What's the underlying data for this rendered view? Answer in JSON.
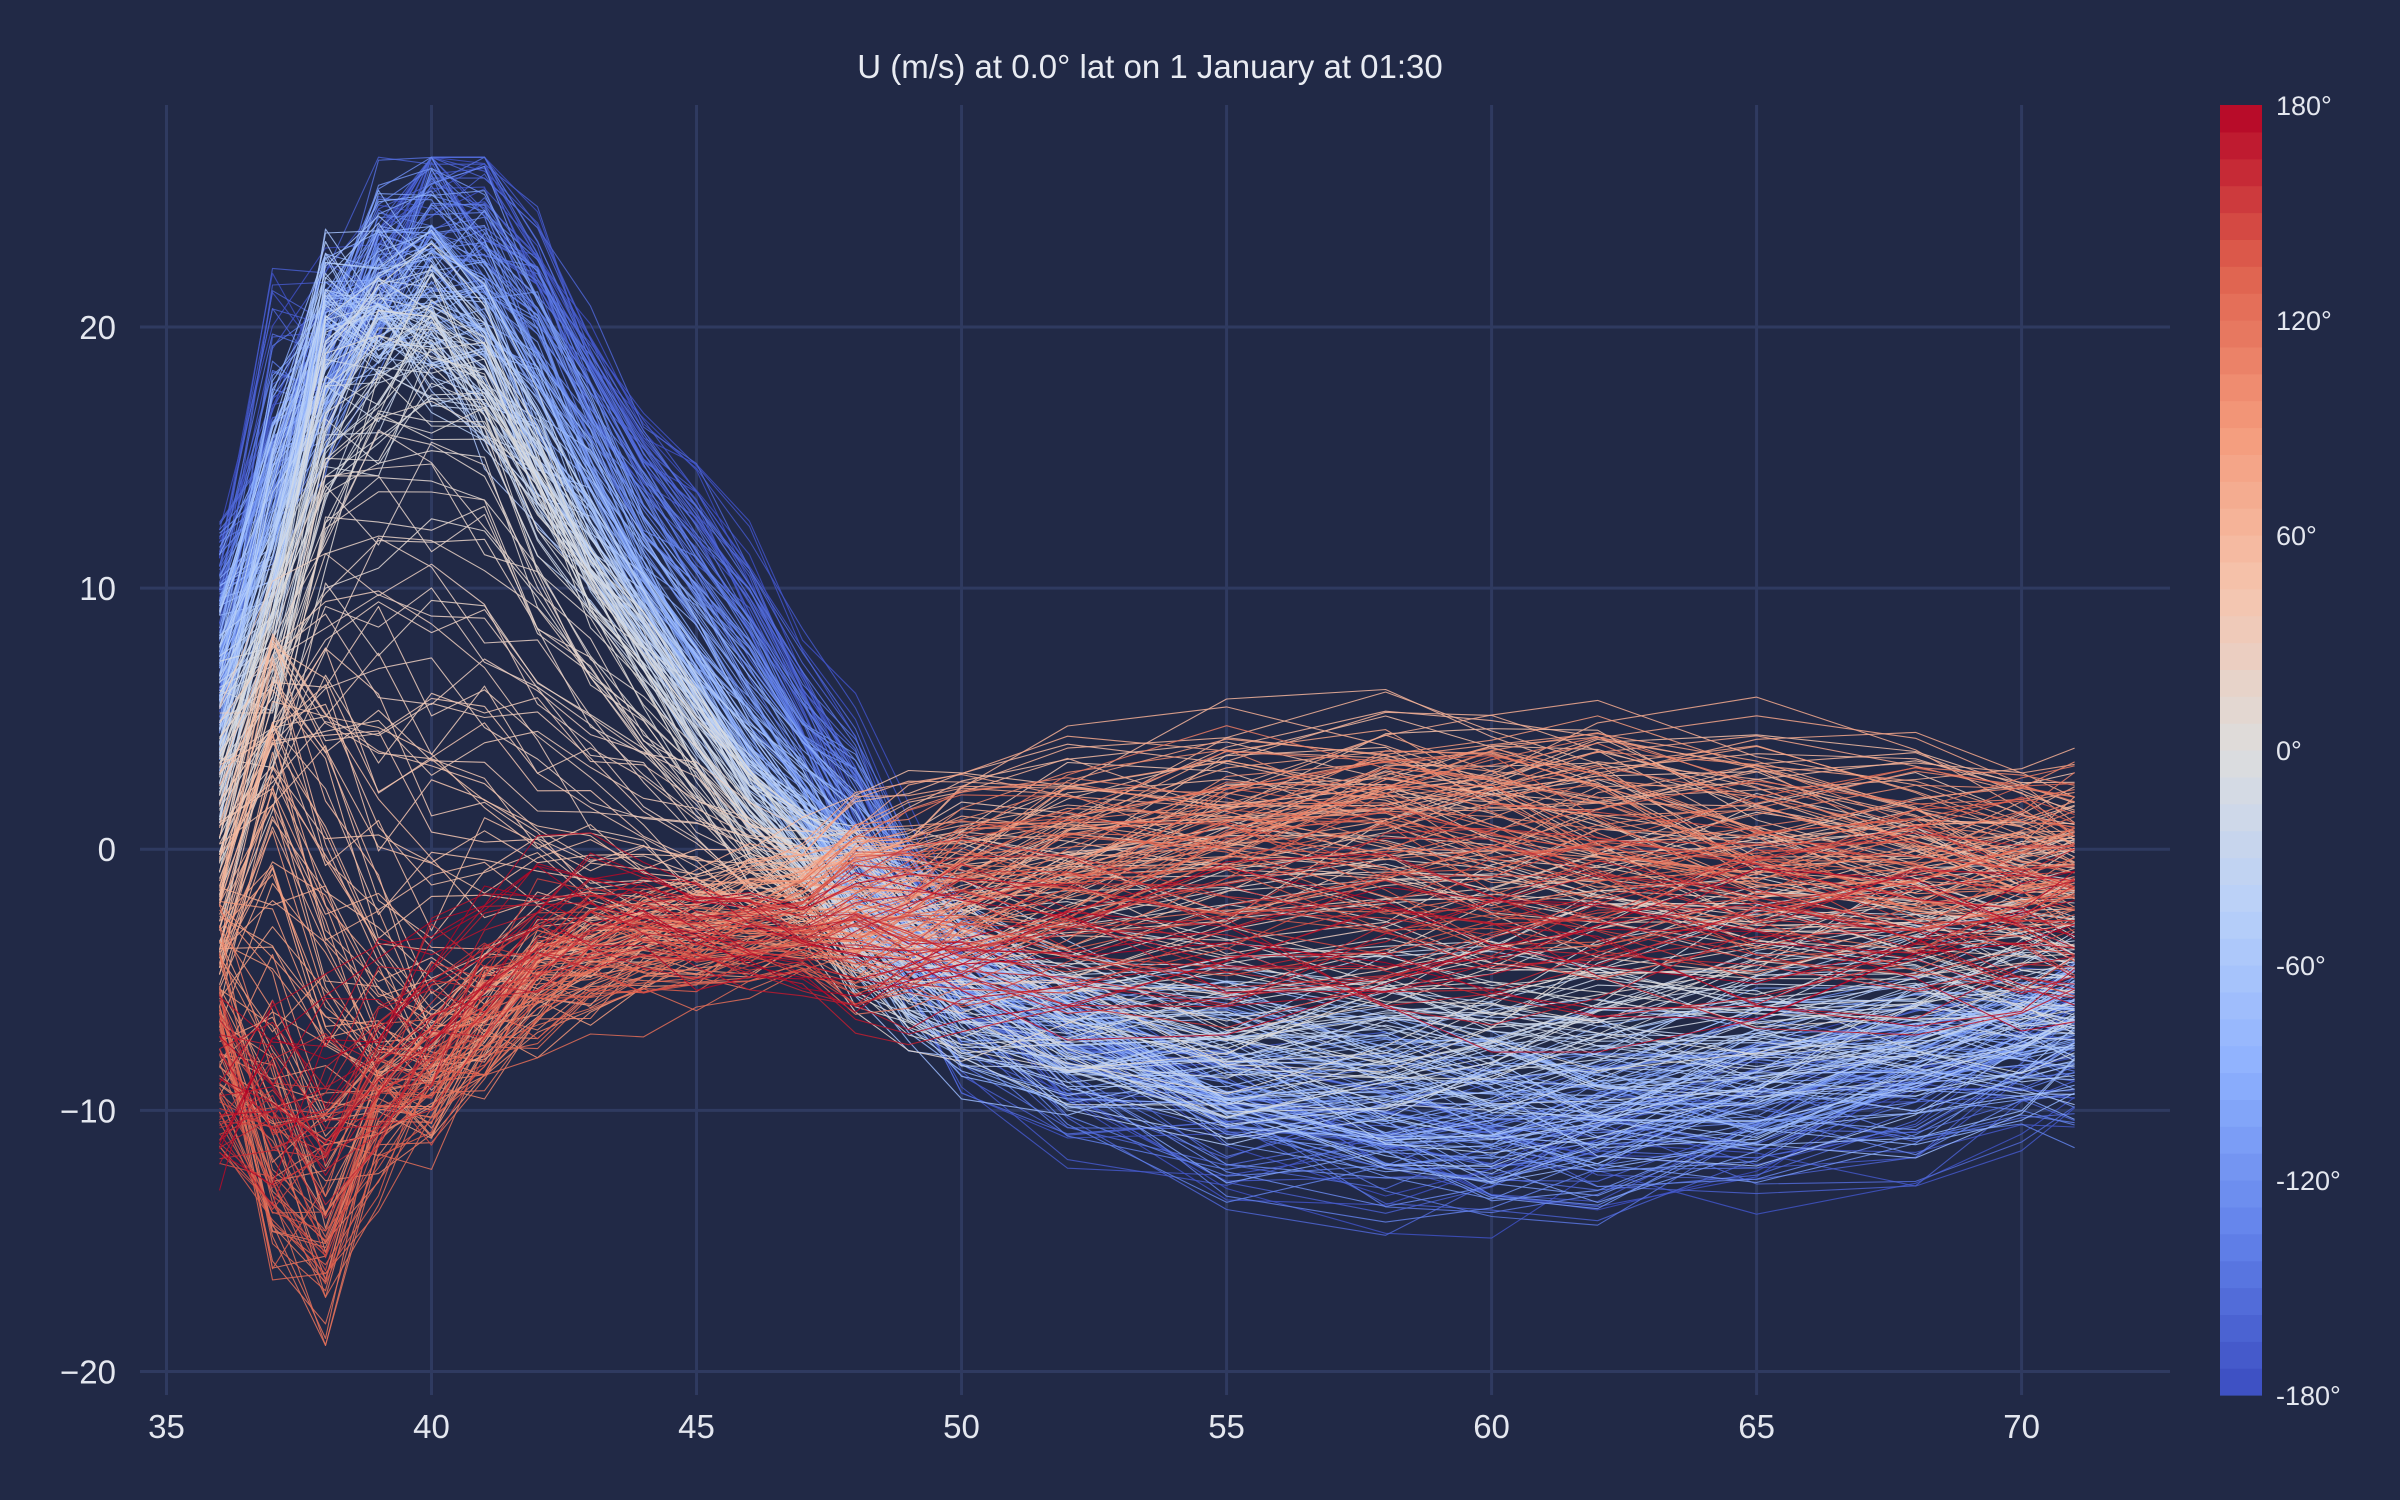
{
  "chart_data": {
    "type": "line",
    "title": "U (m/s) at 0.0° lat on 1 January at 01:30",
    "xlabel": "",
    "ylabel": "",
    "xlim": [
      34.5,
      72.8
    ],
    "ylim": [
      -20.9,
      28.5
    ],
    "grid": true,
    "x_ticks": [
      35,
      40,
      45,
      50,
      55,
      60,
      65,
      70
    ],
    "x_tick_labels": [
      "35",
      "40",
      "45",
      "50",
      "55",
      "60",
      "65",
      "70"
    ],
    "y_ticks": [
      -20,
      -10,
      0,
      10,
      20
    ],
    "y_tick_labels": [
      "−20",
      "−10",
      "0",
      "10",
      "20"
    ],
    "x_range": [
      36,
      71
    ],
    "series_count": 360,
    "series_parameter": "longitude",
    "colormap": "coolwarm",
    "colorbar": {
      "range": [
        -180,
        180
      ],
      "ticks": [
        -180,
        -120,
        -60,
        0,
        60,
        120,
        180
      ],
      "tick_labels": [
        "-180°",
        "-120°",
        "-60°",
        "0°",
        "60°",
        "120°",
        "180°"
      ],
      "levels": 48
    },
    "representative_series": [
      {
        "name": "-180°",
        "x": [
          36,
          37,
          38,
          39,
          40,
          41,
          42,
          43,
          44,
          45,
          46,
          47,
          48,
          49,
          50,
          52,
          55,
          58,
          60,
          62,
          65,
          68,
          70,
          71
        ],
        "y": [
          10,
          19,
          20,
          23,
          26,
          25.5,
          23,
          19,
          16,
          14,
          11,
          7,
          3,
          -2,
          -6,
          -9,
          -11,
          -12,
          -12.3,
          -12,
          -11,
          -9.5,
          -8,
          -7.5
        ]
      },
      {
        "name": "-120°",
        "x": [
          36,
          37,
          38,
          39,
          40,
          41,
          42,
          43,
          44,
          45,
          46,
          47,
          48,
          49,
          50,
          52,
          55,
          58,
          60,
          62,
          65,
          68,
          70,
          71
        ],
        "y": [
          8,
          14,
          18,
          22,
          24,
          23,
          20,
          16,
          12,
          9,
          6,
          3,
          0,
          -3,
          -5,
          -7,
          -9,
          -10,
          -10.5,
          -10.3,
          -9.5,
          -8.5,
          -7.5,
          -7
        ]
      },
      {
        "name": "-60°",
        "x": [
          36,
          37,
          38,
          39,
          40,
          41,
          42,
          43,
          44,
          45,
          46,
          47,
          48,
          49,
          50,
          52,
          55,
          58,
          60,
          62,
          65,
          68,
          70,
          71
        ],
        "y": [
          6,
          13,
          21,
          21,
          20,
          18,
          15,
          12,
          9,
          6,
          3,
          1,
          -2,
          -4,
          -5.5,
          -7,
          -8,
          -8.5,
          -8.8,
          -9,
          -8.5,
          -7.5,
          -7,
          -6.5
        ]
      },
      {
        "name": "0°",
        "x": [
          36,
          37,
          38,
          39,
          40,
          41,
          42,
          43,
          44,
          45,
          46,
          47,
          48,
          49,
          50,
          52,
          55,
          58,
          60,
          62,
          65,
          68,
          70,
          71
        ],
        "y": [
          3,
          7,
          15,
          18,
          20,
          18,
          14,
          10,
          7,
          4,
          1,
          -1,
          -3,
          -4.5,
          -5.5,
          -6.5,
          -7,
          -6.5,
          -6,
          -5.5,
          -5,
          -4.5,
          -4.5,
          -4.5
        ]
      },
      {
        "name": "60°",
        "x": [
          36,
          37,
          38,
          39,
          40,
          41,
          42,
          43,
          44,
          45,
          46,
          47,
          48,
          49,
          50,
          52,
          55,
          58,
          60,
          62,
          65,
          68,
          70,
          71
        ],
        "y": [
          -2,
          5,
          0,
          -4,
          -6,
          -5,
          -4,
          -3.5,
          -3,
          -2.5,
          -2,
          -1.5,
          -1,
          -0.5,
          0.5,
          2,
          3.5,
          4,
          3.5,
          3,
          2,
          1.5,
          1,
          1
        ]
      },
      {
        "name": "120°",
        "x": [
          36,
          37,
          38,
          39,
          40,
          41,
          42,
          43,
          44,
          45,
          46,
          47,
          48,
          49,
          50,
          52,
          55,
          58,
          60,
          62,
          65,
          68,
          70,
          71
        ],
        "y": [
          -8,
          -15,
          -17,
          -12,
          -10,
          -8,
          -6,
          -5,
          -4.5,
          -4,
          -3.5,
          -3,
          -2.5,
          -2,
          -1.5,
          -1,
          0,
          0.5,
          0.5,
          0.5,
          0,
          -0.5,
          -0.5,
          -0.5
        ]
      },
      {
        "name": "180°",
        "x": [
          36,
          37,
          38,
          39,
          40,
          41,
          42,
          43,
          44,
          45,
          46,
          47,
          48,
          49,
          50,
          52,
          55,
          58,
          60,
          62,
          65,
          68,
          70,
          71
        ],
        "y": [
          -10,
          -8,
          -7,
          -6,
          -5,
          -3,
          -2,
          -1.5,
          -2,
          -3,
          -3.5,
          -4,
          -4,
          -4,
          -4,
          -4.2,
          -4.5,
          -5,
          -5.2,
          -5,
          -4.5,
          -4,
          -3.8,
          -3.7
        ]
      }
    ]
  }
}
